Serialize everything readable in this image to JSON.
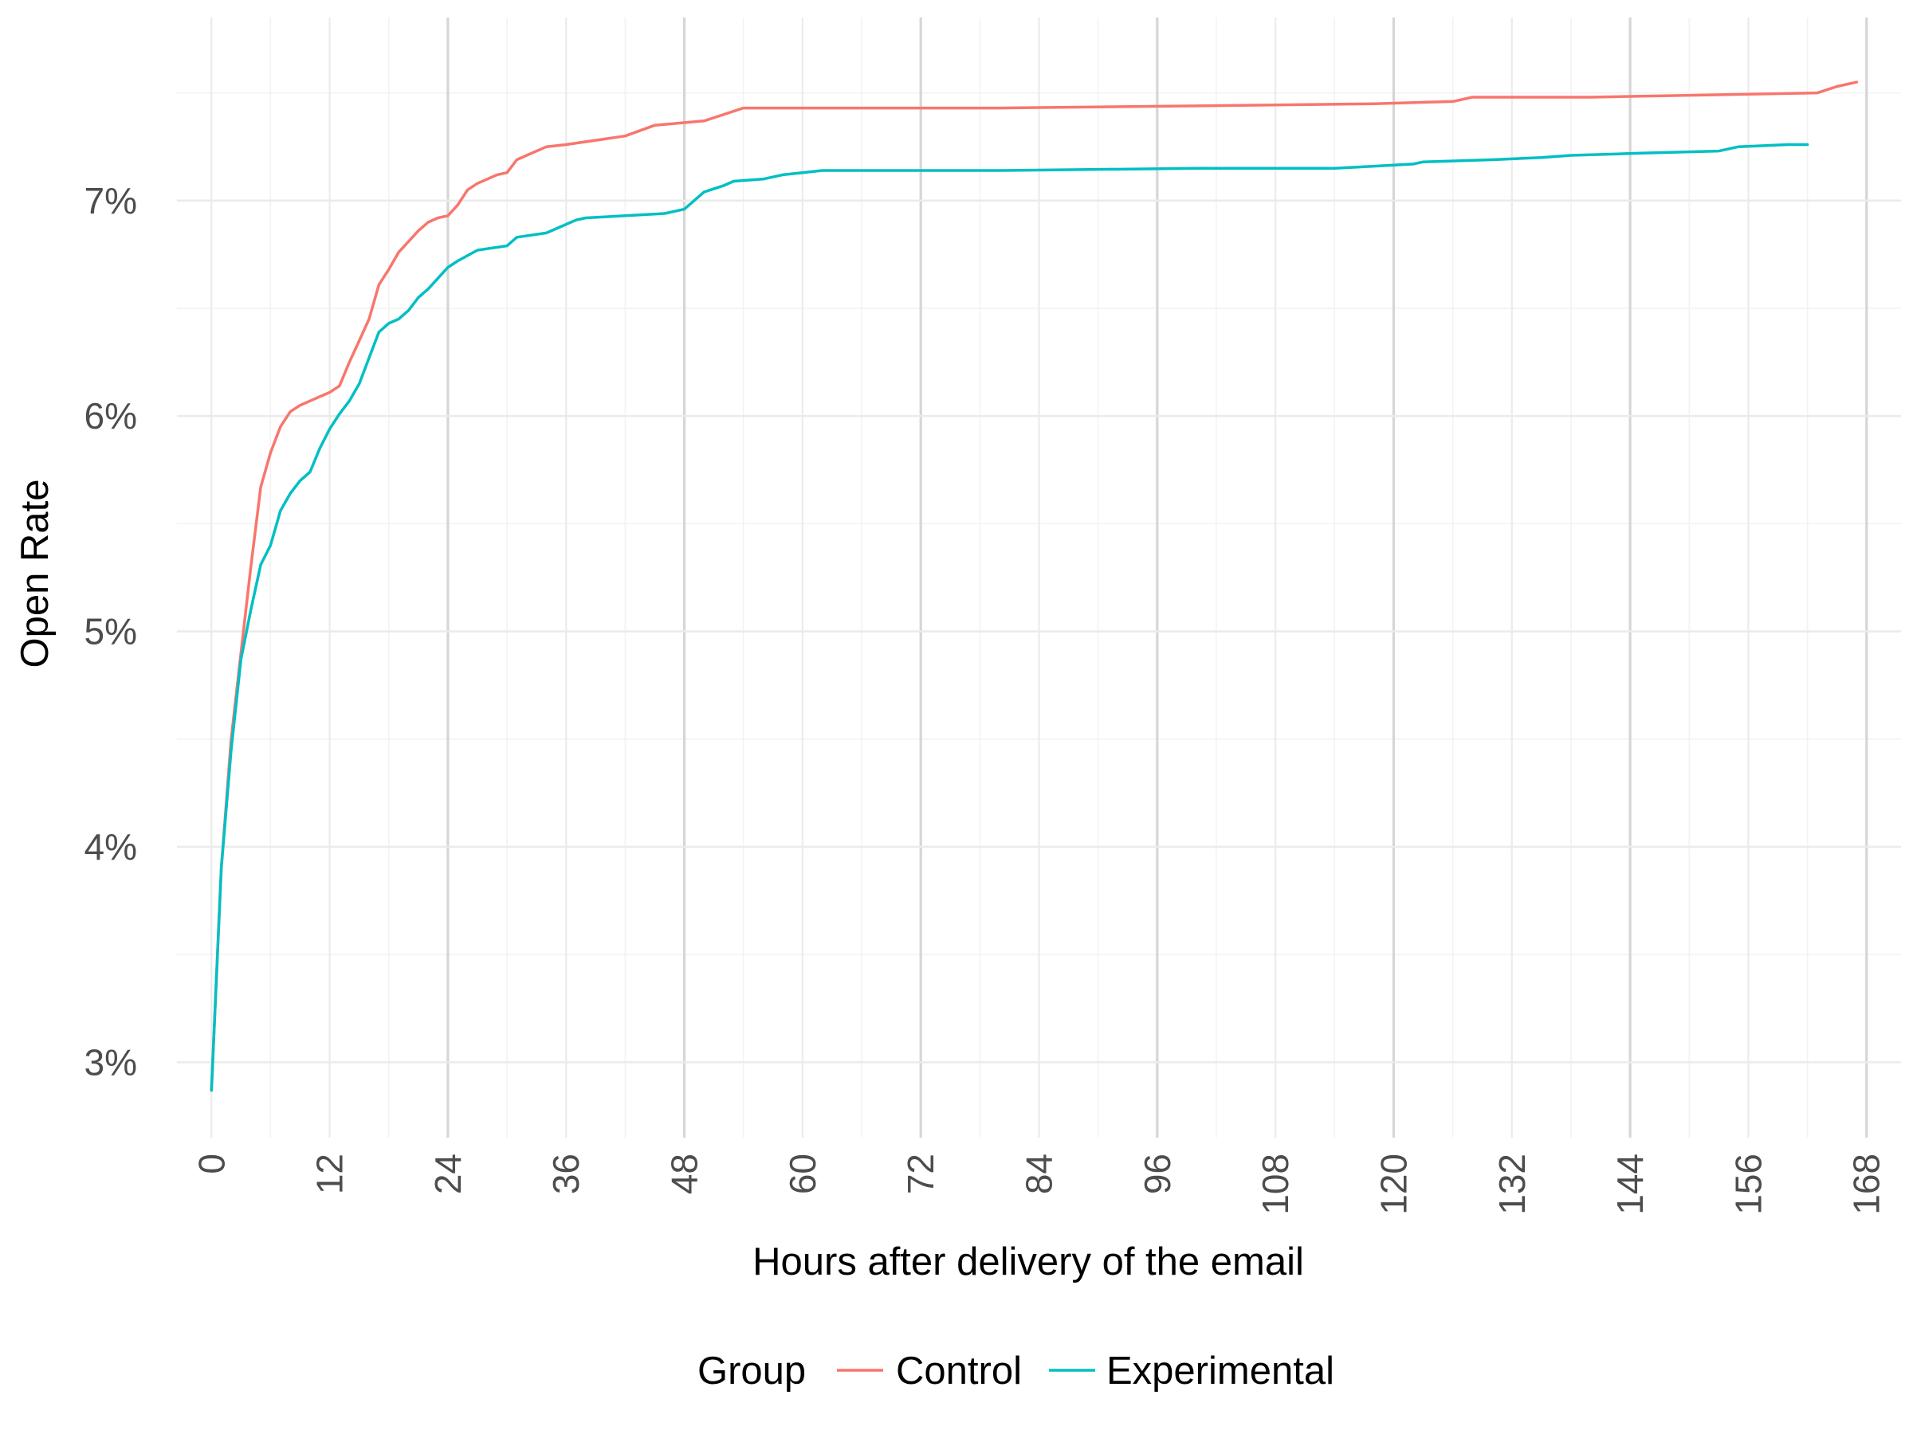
{
  "chart_data": {
    "type": "line",
    "xlabel": "Hours after delivery of the email",
    "ylabel": "Open Rate",
    "xlim": [
      -3.5,
      171.5
    ],
    "ylim": [
      2.65,
      7.85
    ],
    "x_ticks": [
      0,
      12,
      24,
      36,
      48,
      60,
      72,
      84,
      96,
      108,
      120,
      132,
      144,
      156,
      168
    ],
    "x_tick_labels": [
      "0",
      "12",
      "24",
      "36",
      "48",
      "60",
      "72",
      "84",
      "96",
      "108",
      "120",
      "132",
      "144",
      "156",
      "168"
    ],
    "x_major_vertical_lines": [
      24,
      48,
      72,
      96,
      120,
      144,
      168
    ],
    "y_ticks": [
      3,
      4,
      5,
      6,
      7
    ],
    "y_tick_labels": [
      "3%",
      "4%",
      "5%",
      "6%",
      "7%"
    ],
    "grid": true,
    "legend": {
      "title": "Group",
      "position": "bottom"
    },
    "series": [
      {
        "name": "Control",
        "color": "#F8766D",
        "points": [
          [
            0,
            2.87
          ],
          [
            1,
            3.9
          ],
          [
            2,
            4.5
          ],
          [
            3,
            4.9
          ],
          [
            4,
            5.3
          ],
          [
            5,
            5.67
          ],
          [
            6,
            5.83
          ],
          [
            7,
            5.95
          ],
          [
            8,
            6.02
          ],
          [
            9,
            6.05
          ],
          [
            10,
            6.07
          ],
          [
            11,
            6.09
          ],
          [
            12,
            6.11
          ],
          [
            13,
            6.14
          ],
          [
            14,
            6.25
          ],
          [
            15,
            6.35
          ],
          [
            16,
            6.45
          ],
          [
            17,
            6.61
          ],
          [
            18,
            6.68
          ],
          [
            19,
            6.76
          ],
          [
            20,
            6.81
          ],
          [
            21,
            6.86
          ],
          [
            22,
            6.9
          ],
          [
            23,
            6.92
          ],
          [
            24,
            6.93
          ],
          [
            25,
            6.98
          ],
          [
            26,
            7.05
          ],
          [
            27,
            7.08
          ],
          [
            28,
            7.1
          ],
          [
            29,
            7.12
          ],
          [
            30,
            7.13
          ],
          [
            31,
            7.19
          ],
          [
            32,
            7.21
          ],
          [
            34,
            7.25
          ],
          [
            36,
            7.26
          ],
          [
            42,
            7.3
          ],
          [
            45,
            7.35
          ],
          [
            50,
            7.37
          ],
          [
            54,
            7.43
          ],
          [
            60,
            7.43
          ],
          [
            80,
            7.43
          ],
          [
            100,
            7.44
          ],
          [
            118,
            7.45
          ],
          [
            126,
            7.46
          ],
          [
            128,
            7.48
          ],
          [
            140,
            7.48
          ],
          [
            163,
            7.5
          ],
          [
            165,
            7.53
          ],
          [
            167,
            7.55
          ]
        ]
      },
      {
        "name": "Experimental",
        "color": "#00BFC4",
        "points": [
          [
            0,
            2.87
          ],
          [
            1,
            3.9
          ],
          [
            2,
            4.45
          ],
          [
            3,
            4.87
          ],
          [
            4,
            5.1
          ],
          [
            5,
            5.31
          ],
          [
            6,
            5.4
          ],
          [
            7,
            5.56
          ],
          [
            8,
            5.64
          ],
          [
            9,
            5.7
          ],
          [
            10,
            5.74
          ],
          [
            11,
            5.85
          ],
          [
            12,
            5.94
          ],
          [
            13,
            6.01
          ],
          [
            14,
            6.07
          ],
          [
            15,
            6.15
          ],
          [
            16,
            6.27
          ],
          [
            17,
            6.39
          ],
          [
            18,
            6.43
          ],
          [
            19,
            6.45
          ],
          [
            20,
            6.49
          ],
          [
            21,
            6.55
          ],
          [
            22,
            6.59
          ],
          [
            23,
            6.64
          ],
          [
            24,
            6.69
          ],
          [
            25,
            6.72
          ],
          [
            27,
            6.77
          ],
          [
            30,
            6.79
          ],
          [
            31,
            6.83
          ],
          [
            34,
            6.85
          ],
          [
            35,
            6.87
          ],
          [
            36,
            6.89
          ],
          [
            37,
            6.91
          ],
          [
            38,
            6.92
          ],
          [
            42,
            6.93
          ],
          [
            46,
            6.94
          ],
          [
            48,
            6.96
          ],
          [
            50,
            7.04
          ],
          [
            52,
            7.07
          ],
          [
            53,
            7.09
          ],
          [
            56,
            7.1
          ],
          [
            58,
            7.12
          ],
          [
            60,
            7.13
          ],
          [
            62,
            7.14
          ],
          [
            80,
            7.14
          ],
          [
            100,
            7.15
          ],
          [
            114,
            7.15
          ],
          [
            118,
            7.16
          ],
          [
            122,
            7.17
          ],
          [
            123,
            7.18
          ],
          [
            130,
            7.19
          ],
          [
            135,
            7.2
          ],
          [
            138,
            7.21
          ],
          [
            145,
            7.22
          ],
          [
            153,
            7.23
          ],
          [
            155,
            7.25
          ],
          [
            160,
            7.26
          ],
          [
            162,
            7.26
          ]
        ]
      }
    ]
  }
}
